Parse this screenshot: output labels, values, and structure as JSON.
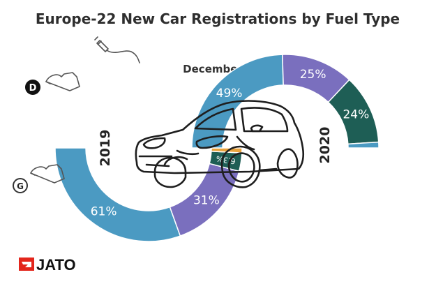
{
  "chart_data": {
    "type": "pie",
    "title": "Europe-22 New Car Registrations by Fuel Type",
    "subtitle": "December",
    "charts": [
      {
        "year": "2019",
        "side": "left",
        "slices": [
          {
            "label": "61%",
            "value": 61.0,
            "fuel": "petrol",
            "color": "#4b9ac2"
          },
          {
            "label": "31%",
            "value": 31.0,
            "fuel": "diesel",
            "color": "#7a6fbe"
          },
          {
            "label": "6.3%",
            "value": 6.3,
            "fuel": "electrified",
            "color": "#1e5e55"
          },
          {
            "label": "",
            "value": 1.7,
            "fuel": "other",
            "color": "#e8a33d"
          }
        ]
      },
      {
        "year": "2020",
        "side": "right",
        "slices": [
          {
            "label": "49%",
            "value": 49.0,
            "fuel": "petrol",
            "color": "#4b9ac2"
          },
          {
            "label": "25%",
            "value": 25.0,
            "fuel": "diesel",
            "color": "#7a6fbe"
          },
          {
            "label": "24%",
            "value": 24.0,
            "fuel": "electrified",
            "color": "#1e5e55"
          },
          {
            "label": "",
            "value": 2.0,
            "fuel": "other",
            "color": "#4b9ac2"
          }
        ]
      }
    ]
  },
  "icons": {
    "diesel_badge": "D",
    "petrol_badge": "G",
    "plug": "plug-icon"
  },
  "brand": {
    "name": "JATO",
    "color": "#e3261c"
  }
}
